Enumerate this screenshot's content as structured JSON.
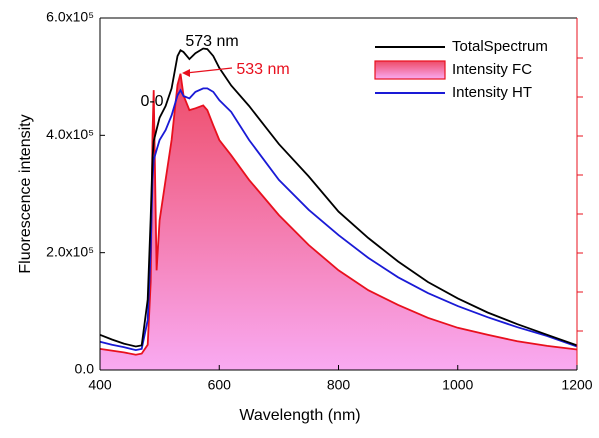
{
  "chart_data": {
    "type": "line",
    "xlabel": "Wavelength (nm)",
    "ylabel": "Fluorescence intensity",
    "x": [
      400,
      420,
      440,
      460,
      470,
      480,
      485,
      488,
      490,
      495,
      500,
      510,
      520,
      530,
      535,
      540,
      550,
      560,
      573,
      580,
      590,
      600,
      620,
      650,
      700,
      750,
      800,
      850,
      900,
      950,
      1000,
      1050,
      1100,
      1150,
      1200
    ],
    "series": [
      {
        "name": "TotalSpectrum",
        "color": "#000000",
        "values": [
          60000,
          52000,
          45000,
          40000,
          42000,
          120000,
          260000,
          360000,
          390000,
          410000,
          430000,
          450000,
          480000,
          535000,
          545000,
          542000,
          530000,
          540000,
          548000,
          547000,
          535000,
          515000,
          485000,
          450000,
          385000,
          330000,
          270000,
          225000,
          185000,
          150000,
          122000,
          98000,
          78000,
          60000,
          42000
        ]
      },
      {
        "name": "Intensity FC",
        "color": "#e8101e",
        "fill": true,
        "values": [
          36000,
          33000,
          30000,
          26000,
          28000,
          43000,
          150000,
          400000,
          477000,
          170000,
          255000,
          324000,
          392000,
          486000,
          505000,
          468000,
          443000,
          446000,
          451000,
          443000,
          417000,
          392000,
          366000,
          324000,
          264000,
          213000,
          170000,
          136000,
          111000,
          89000,
          72000,
          60000,
          49000,
          41000,
          35000
        ]
      },
      {
        "name": "Intensity HT",
        "color": "#1a1ad6",
        "values": [
          48000,
          43000,
          39000,
          34000,
          36000,
          85000,
          204000,
          324000,
          358000,
          375000,
          392000,
          409000,
          434000,
          468000,
          477000,
          467000,
          463000,
          474000,
          480000,
          480000,
          474000,
          460000,
          440000,
          392000,
          324000,
          273000,
          230000,
          191000,
          158000,
          131000,
          109000,
          90000,
          73000,
          58000,
          40000
        ]
      }
    ],
    "fill_gradient": [
      "#ee4a66",
      "#f9aaf2"
    ],
    "annotations": [
      {
        "text": "573 nm",
        "color": "#000000"
      },
      {
        "text": "0-0",
        "color": "#000000"
      },
      {
        "text": "533 nm",
        "color": "#e8101e"
      }
    ],
    "xlim": [
      400,
      1200
    ],
    "xticks": [
      400,
      600,
      800,
      1000,
      1200
    ],
    "ylim": [
      0,
      600000
    ],
    "yticks": [
      {
        "value": 0,
        "label": "0.0"
      },
      {
        "value": 200000,
        "label": "2.0x10⁵"
      },
      {
        "value": 400000,
        "label": "4.0x10⁵"
      },
      {
        "value": 600000,
        "label": "6.0x10⁵"
      }
    ],
    "legend": "top-right",
    "y2_color": "#e8101e"
  }
}
